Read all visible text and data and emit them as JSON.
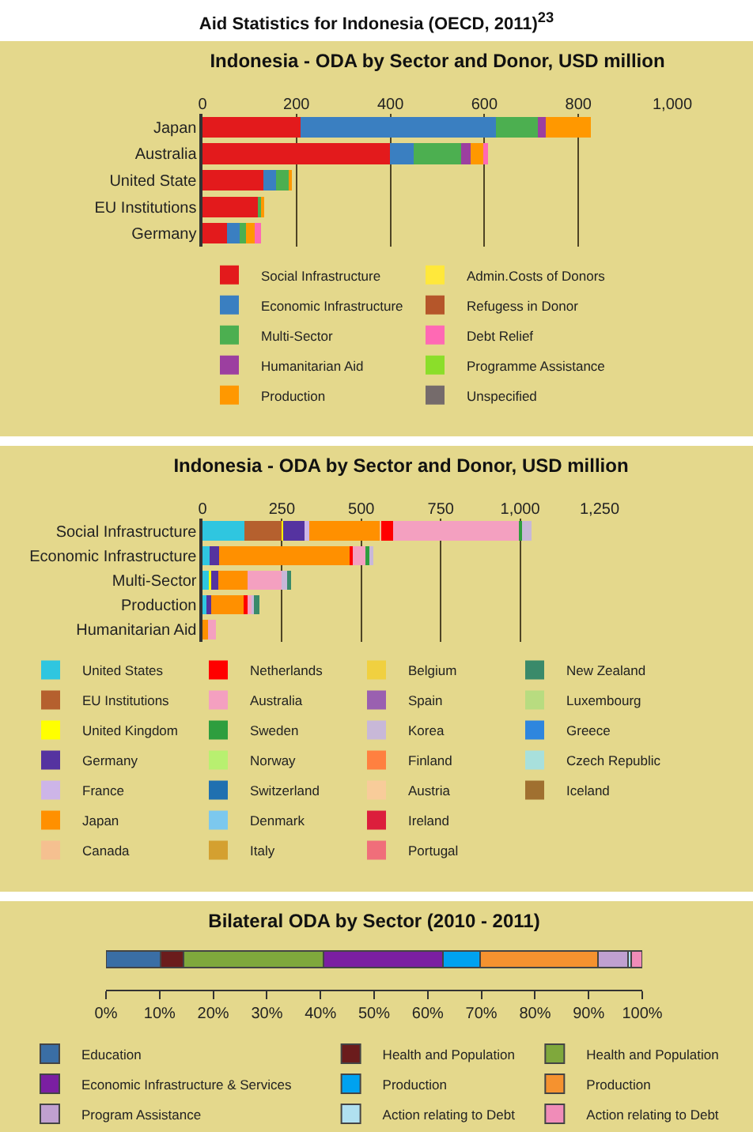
{
  "chart_data": [
    {
      "type": "bar",
      "title": "Aid Statistics for Indonesia (OECD, 2011)$^{23}$",
      "subtitle": "Indonesia - ODA by Sector and Donor, USD million",
      "orientation": "horizontal",
      "stacked": true,
      "grid": "x",
      "legend": "bottom",
      "categories": [
        "Japan",
        "Australia",
        "United State",
        "EU Institutions",
        "Germany"
      ],
      "xlim": [
        0,
        1000
      ],
      "xticks": [
        0,
        200,
        400,
        600,
        800,
        {
          "value": 1000,
          "label": "1,000"
        }
      ],
      "series": [
        {
          "name": "Social Infrastructure",
          "color": "#e31a1c",
          "values": [
            208,
            399,
            129,
            120,
            53
          ]
        },
        {
          "name": "Economic Infrastructure",
          "color": "#3a7fc1",
          "values": [
            416,
            50,
            28,
            null,
            26
          ]
        },
        {
          "name": "Multi-Sector",
          "color": "#4caf50",
          "values": [
            89,
            102,
            26,
            5,
            14
          ]
        },
        {
          "name": "Humanitarian Aid",
          "color": "#9c3fa0",
          "values": [
            17,
            20,
            null,
            null,
            null
          ]
        },
        {
          "name": "Production",
          "color": "#ff9800",
          "values": [
            96,
            27,
            8,
            6,
            18
          ]
        },
        {
          "name": "Admin.Costs of Donors",
          "color": "#ffe83b",
          "values": [
            null,
            null,
            null,
            null,
            null
          ]
        },
        {
          "name": "Refugess in Donor",
          "color": "#b5562a",
          "values": [
            null,
            null,
            null,
            null,
            null
          ]
        },
        {
          "name": "Debt Relief",
          "color": "#ff69b4",
          "values": [
            null,
            9,
            null,
            null,
            13
          ]
        },
        {
          "name": "Programme Assistance",
          "color": "#8bde2a",
          "values": [
            null,
            null,
            null,
            null,
            null
          ]
        },
        {
          "name": "Unspecified",
          "color": "#756b6b",
          "values": [
            null,
            null,
            null,
            null,
            null
          ]
        }
      ]
    },
    {
      "type": "bar",
      "title": "Indonesia - ODA by Sector and Donor, USD million",
      "orientation": "horizontal",
      "stacked": true,
      "grid": "x",
      "legend": "bottom",
      "categories": [
        "Social Infrastructure",
        "Economic Infrastructure",
        "Multi-Sector",
        "Production",
        "Humanitarian Aid"
      ],
      "xlim": [
        0,
        1250
      ],
      "xticks": [
        0,
        250,
        500,
        750,
        {
          "value": 1000,
          "label": "1,000"
        },
        {
          "value": 1250,
          "label": "1,250"
        }
      ],
      "series": [
        {
          "name": "United States",
          "color": "#2fc6e0",
          "values": [
            133,
            22,
            22,
            13,
            null
          ]
        },
        {
          "name": "EU Institutions",
          "color": "#b5602e",
          "values": [
            117,
            null,
            null,
            null,
            null
          ]
        },
        {
          "name": "United Kingdom",
          "color": "#ffff00",
          "values": [
            5,
            null,
            6,
            null,
            null
          ]
        },
        {
          "name": "Germany",
          "color": "#5533a0",
          "values": [
            67,
            31,
            22,
            15,
            null
          ]
        },
        {
          "name": "France",
          "color": "#cdb5e8",
          "values": [
            15,
            null,
            null,
            null,
            null
          ]
        },
        {
          "name": "Japan",
          "color": "#ff9000",
          "values": [
            221,
            410,
            92,
            105,
            17
          ]
        },
        {
          "name": "Canada",
          "color": "#f5c090",
          "values": [
            5,
            null,
            null,
            null,
            null
          ]
        },
        {
          "name": "Netherlands",
          "color": "#ff0000",
          "values": [
            37,
            10,
            null,
            9,
            null
          ]
        },
        {
          "name": "Australia",
          "color": "#f4a0c0",
          "values": [
            395,
            44,
            108,
            13,
            25
          ]
        },
        {
          "name": "Sweden",
          "color": "#2e9e3e",
          "values": [
            11,
            8,
            null,
            null,
            null
          ]
        },
        {
          "name": "Norway",
          "color": "#b8f070",
          "values": [
            null,
            null,
            null,
            null,
            null
          ]
        },
        {
          "name": "Switzerland",
          "color": "#2070b0",
          "values": [
            null,
            null,
            null,
            null,
            null
          ]
        },
        {
          "name": "Denmark",
          "color": "#7cc8ee",
          "values": [
            null,
            null,
            null,
            null,
            null
          ]
        },
        {
          "name": "Italy",
          "color": "#d4a030",
          "values": [
            null,
            null,
            null,
            null,
            null
          ]
        },
        {
          "name": "Belgium",
          "color": "#f0d040",
          "values": [
            null,
            null,
            null,
            null,
            null
          ]
        },
        {
          "name": "Spain",
          "color": "#9a60b0",
          "values": [
            null,
            null,
            null,
            null,
            null
          ]
        },
        {
          "name": "Korea",
          "color": "#c8b8d8",
          "values": [
            30,
            13,
            17,
            8,
            null
          ]
        },
        {
          "name": "Finland",
          "color": "#ff8040",
          "values": [
            null,
            null,
            null,
            null,
            null
          ]
        },
        {
          "name": "Austria",
          "color": "#f8cc9a",
          "values": [
            null,
            null,
            null,
            null,
            null
          ]
        },
        {
          "name": "Ireland",
          "color": "#dc1e3c",
          "values": [
            null,
            null,
            null,
            null,
            null
          ]
        },
        {
          "name": "Portugal",
          "color": "#f06e7a",
          "values": [
            null,
            null,
            null,
            null,
            null
          ]
        },
        {
          "name": "New Zealand",
          "color": "#3a8a6a",
          "values": [
            null,
            null,
            11,
            17,
            null
          ]
        },
        {
          "name": "Luxembourg",
          "color": "#b8dc80",
          "values": [
            null,
            null,
            null,
            null,
            null
          ]
        },
        {
          "name": "Greece",
          "color": "#2e86de",
          "values": [
            null,
            null,
            null,
            null,
            null
          ]
        },
        {
          "name": "Czech Republic",
          "color": "#a8e0dc",
          "values": [
            null,
            null,
            null,
            null,
            null
          ]
        },
        {
          "name": "Iceland",
          "color": "#a07030",
          "values": [
            null,
            null,
            null,
            null,
            null
          ]
        }
      ]
    },
    {
      "type": "bar",
      "title": "Bilateral ODA by Sector (2010 - 2011)",
      "orientation": "horizontal",
      "stacked": true,
      "legend": "bottom",
      "tick_labels": "x",
      "categories": [
        null
      ],
      "xlim": [
        0,
        100
      ],
      "xticks": [
        {
          "value": 0,
          "label": "0%"
        },
        {
          "value": 10,
          "label": "10%"
        },
        {
          "value": 20,
          "label": "20%"
        },
        {
          "value": 30,
          "label": "30%"
        },
        {
          "value": 40,
          "label": "40%"
        },
        {
          "value": 50,
          "label": "50%"
        },
        {
          "value": 60,
          "label": "60%"
        },
        {
          "value": 70,
          "label": "70%"
        },
        {
          "value": 80,
          "label": "80%"
        },
        {
          "value": 90,
          "label": "90%"
        },
        {
          "value": 100,
          "label": "100%"
        }
      ],
      "series": [
        {
          "name": "Education",
          "color": "#3a6ea5",
          "values": [
            10.2
          ]
        },
        {
          "name": "Health and Population",
          "color": "#6b1c1c",
          "values": [
            4.2
          ]
        },
        {
          "name": "Health and Population",
          "color": "#7fa83c",
          "values": [
            26.1
          ]
        },
        {
          "name": "Economic Infrastructure & Services",
          "color": "#7b1fa2",
          "values": [
            22.3
          ]
        },
        {
          "name": "Production",
          "color": "#00a2f0",
          "values": [
            6.9
          ]
        },
        {
          "name": "Production",
          "color": "#f5922f",
          "values": [
            22.0
          ]
        },
        {
          "name": "Program Assistance",
          "color": "#c0a0d0",
          "values": [
            5.7
          ]
        },
        {
          "name": "Action relating to Debt",
          "color": "#b0e0f0",
          "values": [
            0.6
          ]
        },
        {
          "name": "Action relating to Debt",
          "color": "#f08cb8",
          "values": [
            2.0
          ]
        }
      ]
    }
  ]
}
